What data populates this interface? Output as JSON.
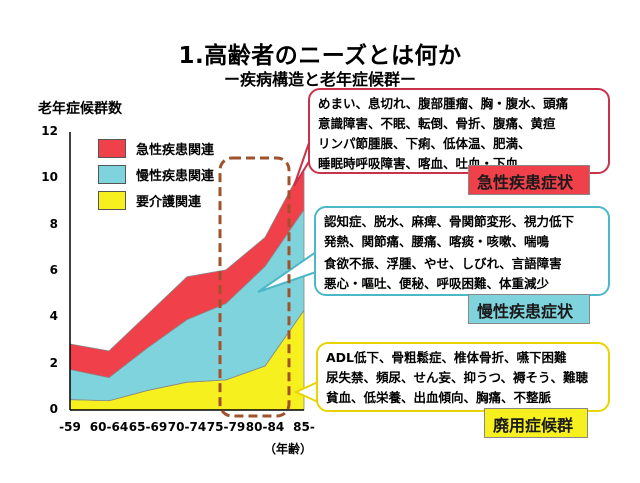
{
  "title": "1.高齢者のニーズとは何か",
  "subtitle": "ー疾病構造と老年症候群ー",
  "chart_data": {
    "type": "area",
    "stacked": true,
    "ylabel": "老年症候群数",
    "ylim": [
      0,
      12
    ],
    "yticks": [
      "0",
      "2",
      "4",
      "6",
      "8",
      "10",
      "12"
    ],
    "categories": [
      "-59",
      "60-64",
      "65-69",
      "70-74",
      "75-79",
      "80-84",
      "85-"
    ],
    "x_unit": "（年齢）",
    "series": [
      {
        "name": "要介護関連",
        "color": "#f5f01e",
        "values": [
          0.45,
          0.4,
          0.85,
          1.2,
          1.3,
          1.9,
          4.3
        ]
      },
      {
        "name": "慢性疾患関連",
        "color": "#7fd3dc",
        "values": [
          1.3,
          1.0,
          1.85,
          2.7,
          3.3,
          4.3,
          4.35
        ]
      },
      {
        "name": "急性疾患関連",
        "color": "#f0404a",
        "values": [
          1.1,
          1.15,
          1.45,
          1.85,
          1.45,
          1.25,
          1.95
        ]
      }
    ],
    "legend_position": "top-left",
    "grid": false,
    "highlight_box": [
      "75-79",
      "80-84"
    ]
  },
  "callouts": {
    "acute": {
      "lines": [
        "めまい、息切れ、腹部腫瘤、胸・腹水、頭痛",
        "意識障害、不眠、転倒、骨折、腹痛、黄疸",
        "リンパ節腫脹、下痢、低体温、肥満、",
        "睡眠時呼吸障害、喀血、吐血・下血"
      ],
      "tag": "急性疾患症状",
      "border_color": "#c8324a",
      "tag_bg": "#f0404a"
    },
    "chronic": {
      "lines": [
        "認知症、脱水、麻痺、骨関節変形、視力低下",
        "発熱、関節痛、腰痛、喀痰・咳嗽、喘鳴",
        "食欲不振、浮腫、やせ、しびれ、言語障害",
        "悪心・嘔吐、便秘、呼吸困難、体重減少"
      ],
      "tag": "慢性疾患症状",
      "border_color": "#4bb8c8",
      "tag_bg": "#7fd3dc"
    },
    "disuse": {
      "lines": [
        "ADL低下、骨粗鬆症、椎体骨折、嚥下困難",
        "尿失禁、頻尿、せん妄、抑うつ、褥そう、難聴",
        "貧血、低栄養、出血傾向、胸痛、不整脈"
      ],
      "tag": "廃用症候群",
      "border_color": "#e8d400",
      "tag_bg": "#f5f01e"
    }
  }
}
